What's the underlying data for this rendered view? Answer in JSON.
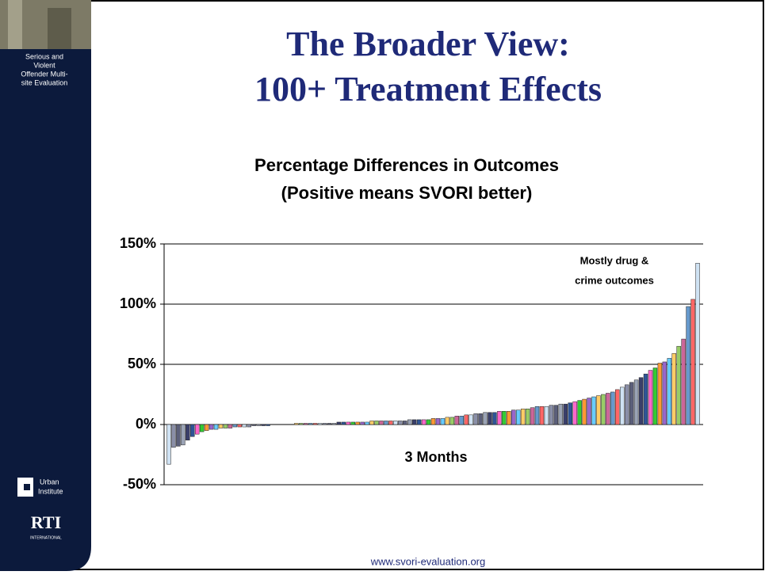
{
  "slide": {
    "title_lines": [
      "The Broader View:",
      "100+ Treatment Effects"
    ],
    "footer": "www.svori-evaluation.org"
  },
  "sidebar": {
    "project_lines": [
      "Serious and",
      "Violent",
      "Offender Multi-",
      "site Evaluation"
    ],
    "urban_lines": [
      "Urban",
      "Institute"
    ],
    "rti": "RTI",
    "rti_sub": "INTERNATIONAL"
  },
  "chart_data": {
    "type": "bar",
    "title": [
      "Percentage Differences in Outcomes",
      "(Positive means SVORI better)"
    ],
    "xlabel": "3 Months",
    "annotations": [
      "Mostly drug &",
      "crime outcomes"
    ],
    "ylim": [
      -50,
      150
    ],
    "yticks": [
      {
        "value": -50,
        "label": "-50%"
      },
      {
        "value": 0,
        "label": "0%"
      },
      {
        "value": 50,
        "label": "50%"
      },
      {
        "value": 100,
        "label": "100%"
      },
      {
        "value": 150,
        "label": "150%"
      }
    ],
    "grid": true,
    "palette": [
      "#cfe2f3",
      "#8a8fa8",
      "#5b5f7a",
      "#9aa3b5",
      "#3a3f6a",
      "#2f5597",
      "#ff66cc",
      "#33cc33",
      "#ff9933",
      "#9966cc",
      "#66ccff",
      "#ffcc66",
      "#99cc66",
      "#cc6699",
      "#6699cc",
      "#ff6666"
    ],
    "values": [
      -33,
      -19,
      -18,
      -17,
      -13,
      -10,
      -8,
      -6,
      -5,
      -4,
      -4,
      -3,
      -3,
      -3,
      -2,
      -2,
      -2,
      -2,
      -1,
      -1,
      -1,
      -1,
      0,
      0,
      0,
      0,
      0,
      1,
      1,
      1,
      1,
      1,
      1,
      1,
      1,
      1,
      2,
      2,
      2,
      2,
      2,
      2,
      2,
      3,
      3,
      3,
      3,
      3,
      3,
      3,
      3,
      4,
      4,
      4,
      4,
      4,
      5,
      5,
      5,
      6,
      6,
      7,
      7,
      8,
      8,
      9,
      9,
      10,
      10,
      10,
      11,
      11,
      11,
      12,
      12,
      13,
      13,
      14,
      15,
      15,
      15,
      16,
      16,
      17,
      17,
      18,
      19,
      20,
      21,
      22,
      23,
      24,
      25,
      26,
      27,
      29,
      31,
      33,
      35,
      37,
      39,
      42,
      45,
      47,
      51,
      52,
      55,
      59,
      65,
      71,
      98,
      104,
      134
    ]
  }
}
